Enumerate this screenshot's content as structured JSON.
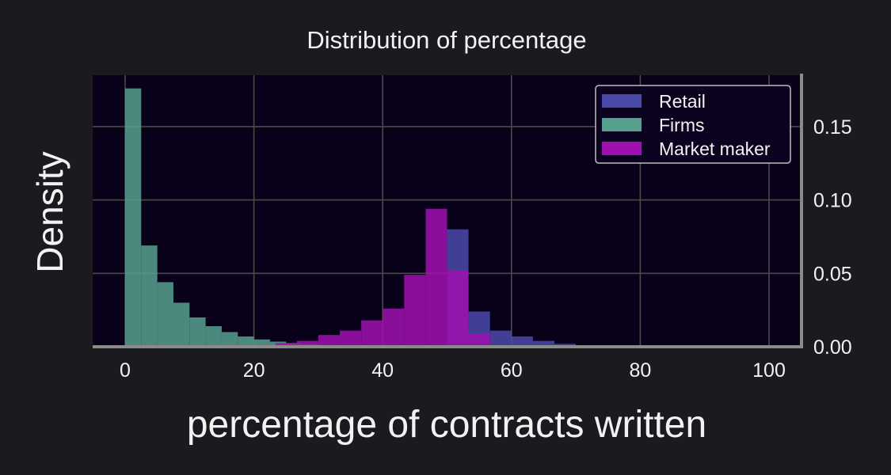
{
  "chart_data": {
    "type": "bar",
    "title": "Distribution of percentage",
    "xlabel": "percentage of  contracts written",
    "ylabel": "Density",
    "xlim": [
      -5,
      105
    ],
    "ylim": [
      0,
      0.185
    ],
    "xticks": [
      0,
      20,
      40,
      60,
      80,
      100
    ],
    "yticks": [
      0.0,
      0.05,
      0.1,
      0.15
    ],
    "ytick_labels": [
      "0.00",
      "0.05",
      "0.10",
      "0.15"
    ],
    "yaxis_side": "right",
    "grid": true,
    "legend_position": "top-right",
    "bin_width": 3.33,
    "series": [
      {
        "name": "Retail",
        "color": "#4a4aaa",
        "bins": [
          {
            "x0": 50.0,
            "value": 0.08
          },
          {
            "x0": 53.33,
            "value": 0.024
          },
          {
            "x0": 56.67,
            "value": 0.011
          },
          {
            "x0": 60.0,
            "value": 0.007
          },
          {
            "x0": 63.33,
            "value": 0.004
          },
          {
            "x0": 66.67,
            "value": 0.002
          },
          {
            "x0": 70.0,
            "value": 0.001
          },
          {
            "x0": 73.33,
            "value": 0.0005
          },
          {
            "x0": 76.67,
            "value": 0.0003
          },
          {
            "x0": 80.0,
            "value": 0.0002
          },
          {
            "x0": 83.33,
            "value": 0.0001
          }
        ]
      },
      {
        "name": "Firms",
        "color": "#57a090",
        "bins": [
          {
            "x0": 0.0,
            "value": 0.176
          },
          {
            "x0": 2.5,
            "value": 0.069
          },
          {
            "x0": 5.0,
            "value": 0.044
          },
          {
            "x0": 7.5,
            "value": 0.03
          },
          {
            "x0": 10.0,
            "value": 0.02
          },
          {
            "x0": 12.5,
            "value": 0.014
          },
          {
            "x0": 15.0,
            "value": 0.01
          },
          {
            "x0": 17.5,
            "value": 0.007
          },
          {
            "x0": 20.0,
            "value": 0.005
          },
          {
            "x0": 22.5,
            "value": 0.0035
          },
          {
            "x0": 25.0,
            "value": 0.0025
          },
          {
            "x0": 27.5,
            "value": 0.0018
          },
          {
            "x0": 30.0,
            "value": 0.0012
          },
          {
            "x0": 32.5,
            "value": 0.0008
          },
          {
            "x0": 35.0,
            "value": 0.0005
          }
        ]
      },
      {
        "name": "Market maker",
        "color": "#a010b0",
        "bins": [
          {
            "x0": 20.0,
            "value": 0.001
          },
          {
            "x0": 23.33,
            "value": 0.0025
          },
          {
            "x0": 26.67,
            "value": 0.004
          },
          {
            "x0": 30.0,
            "value": 0.008
          },
          {
            "x0": 33.33,
            "value": 0.011
          },
          {
            "x0": 36.67,
            "value": 0.018
          },
          {
            "x0": 40.0,
            "value": 0.026
          },
          {
            "x0": 43.33,
            "value": 0.049
          },
          {
            "x0": 46.67,
            "value": 0.094
          },
          {
            "x0": 50.0,
            "value": 0.052
          },
          {
            "x0": 53.33,
            "value": 0.009
          },
          {
            "x0": 56.67,
            "value": 0.001
          }
        ]
      }
    ]
  }
}
